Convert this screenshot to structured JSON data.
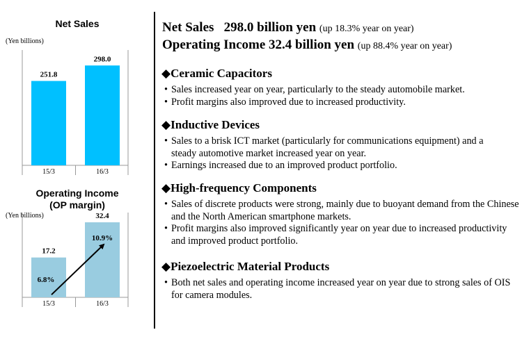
{
  "chart_data": [
    {
      "type": "bar",
      "title": "Net Sales",
      "unit_label": "(Yen billions)",
      "categories": [
        "15/3",
        "16/3"
      ],
      "values": [
        251.8,
        298.0
      ],
      "value_labels": [
        "251.8",
        "298.0"
      ],
      "color": "#00C0FF",
      "ylim": [
        0,
        340
      ]
    },
    {
      "type": "bar",
      "title": "Operating Income\n(OP margin)",
      "title_lines": [
        "Operating Income",
        "(OP margin)"
      ],
      "unit_label": "(Yen billions)",
      "categories": [
        "15/3",
        "16/3"
      ],
      "values": [
        17.2,
        32.4
      ],
      "value_labels": [
        "17.2",
        "32.4"
      ],
      "margins": [
        6.8,
        10.9
      ],
      "margin_labels": [
        "6.8%",
        "10.9%"
      ],
      "color": "#99CCE0",
      "ylim": [
        0,
        36
      ]
    }
  ],
  "header": {
    "line1_main": "Net Sales   298.0 billion yen",
    "line1_note": "(up 18.3% year on year)",
    "line2_main": "Operating Income 32.4 billion yen",
    "line2_note": "(up 88.4% year on year)"
  },
  "sections": [
    {
      "title": "◆Ceramic Capacitors",
      "bullets": [
        "Sales increased year on year, particularly to the steady automobile market.",
        "Profit margins also improved due to increased productivity."
      ]
    },
    {
      "title": "◆Inductive Devices",
      "bullets": [
        "Sales to a brisk ICT market (particularly for communications equipment) and a steady automotive market increased year on year.",
        "Earnings increased due to an improved product portfolio."
      ]
    },
    {
      "title": "◆High-frequency Components",
      "bullets": [
        "Sales of discrete products were strong, mainly due to buoyant demand from the Chinese and the North American smartphone markets.",
        " Profit margins also improved significantly year on year due to increased productivity and improved product portfolio."
      ]
    },
    {
      "title": "◆Piezoelectric Material Products",
      "bullets": [
        "Both net sales and operating income increased year on year due to strong sales of OIS for camera modules."
      ]
    }
  ]
}
